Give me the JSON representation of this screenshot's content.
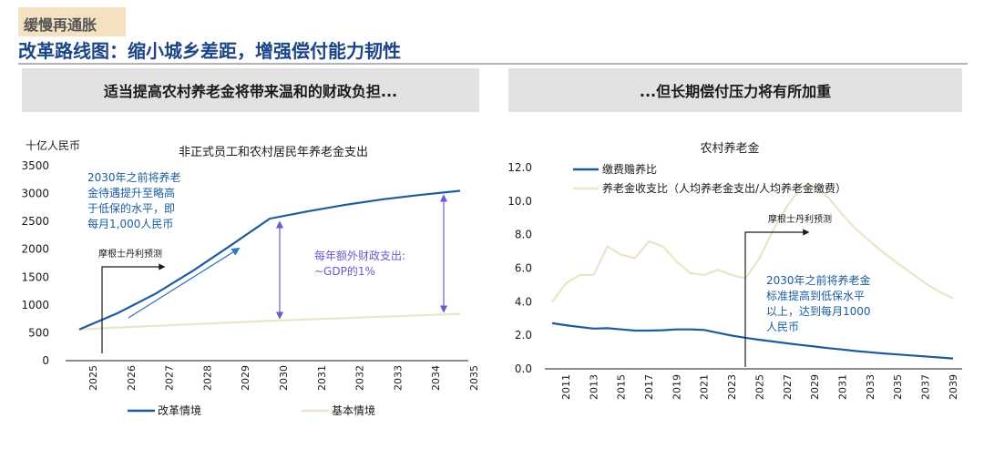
{
  "header": {
    "section_tag": "缓慢再通胀",
    "title": "改革路线图：缩小城乡差距，增强偿付能力韧性"
  },
  "banners": {
    "left": "适当提高农村养老金将带来温和的财政负担...",
    "right": "...但长期偿付压力将有所加重"
  },
  "colors": {
    "reform": "#1a5c9e",
    "base": "#ece4c6",
    "annotation": "#1a5c9e",
    "fiscal_annotation": "#6a5acd",
    "arrow_purple": "#6a5acd",
    "arrow_blue": "#2f76c0",
    "dark": "#1a1a1a"
  },
  "chart_data": [
    {
      "type": "line",
      "title": "非正式员工和农村居民年养老金支出",
      "ylabel": "十亿人民币",
      "xlabel": "",
      "categories": [
        "2025",
        "2026",
        "2027",
        "2028",
        "2029",
        "2030",
        "2031",
        "2032",
        "2033",
        "2034",
        "2035"
      ],
      "ylim": [
        0,
        3500
      ],
      "yticks": [
        0,
        500,
        1000,
        1500,
        2000,
        2500,
        3000,
        3500
      ],
      "series": [
        {
          "name": "改革情境",
          "values": [
            560,
            850,
            1200,
            1620,
            2080,
            2550,
            2680,
            2800,
            2900,
            2980,
            3050
          ]
        },
        {
          "name": "基本情境",
          "values": [
            560,
            595,
            625,
            655,
            685,
            715,
            740,
            765,
            790,
            815,
            840
          ]
        }
      ],
      "legend_position": "bottom",
      "annotations": {
        "reform_note": "2030年之前将养老金待遇提升至略高于低保的水平，即每月1,000人民币",
        "reform_note_lines": [
          "2030年之前将养老",
          "金待遇提升至略高",
          "于低保的水平，即",
          "每月1,000人民币"
        ],
        "forecast_label": "摩根士丹利预测",
        "fiscal_label": "每年额外财政支出:",
        "fiscal_value": "~GDP的1%"
      }
    },
    {
      "type": "line",
      "title": "农村养老金",
      "ylabel": "",
      "xlabel": "",
      "x": [
        2011,
        2012,
        2013,
        2014,
        2015,
        2016,
        2017,
        2018,
        2019,
        2020,
        2021,
        2022,
        2023,
        2024,
        2025,
        2026,
        2027,
        2028,
        2029,
        2030,
        2031,
        2032,
        2033,
        2034,
        2035,
        2036,
        2037,
        2038,
        2039,
        2040
      ],
      "xtick_labels": [
        "2011",
        "2013",
        "2015",
        "2017",
        "2019",
        "2021",
        "2023",
        "2025",
        "2027",
        "2029",
        "2031",
        "2033",
        "2035",
        "2037",
        "2039"
      ],
      "ylim": [
        0,
        12
      ],
      "yticks": [
        "0.0",
        "2.0",
        "4.0",
        "6.0",
        "8.0",
        "10.0",
        "12.0"
      ],
      "series": [
        {
          "name": "缴费赡养比",
          "values": [
            2.72,
            2.6,
            2.5,
            2.4,
            2.42,
            2.35,
            2.28,
            2.28,
            2.3,
            2.35,
            2.35,
            2.32,
            2.15,
            1.98,
            1.85,
            1.73,
            1.63,
            1.52,
            1.42,
            1.33,
            1.23,
            1.15,
            1.06,
            0.99,
            0.92,
            0.86,
            0.8,
            0.74,
            0.68,
            0.62
          ]
        },
        {
          "name": "养老金收支比（人均养老金支出/人均养老金缴费）",
          "values": [
            4.0,
            5.1,
            5.6,
            5.6,
            7.3,
            6.8,
            6.6,
            7.6,
            7.3,
            6.4,
            5.7,
            5.6,
            5.9,
            5.6,
            5.4,
            6.6,
            8.3,
            9.7,
            10.8,
            10.9,
            10.2,
            9.2,
            8.3,
            7.6,
            6.9,
            6.3,
            5.7,
            5.1,
            4.6,
            4.2
          ]
        }
      ],
      "legend_position": "top-left",
      "annotations": {
        "forecast_label": "摩根士丹利预测",
        "note": "2030年之前将养老金标准提高到低保水平以上，达到每月1000人民币",
        "note_lines": [
          "2030年之前将养老金",
          "标准提高到低保水平",
          "以上，达到每月1000",
          "人民币"
        ]
      }
    }
  ]
}
